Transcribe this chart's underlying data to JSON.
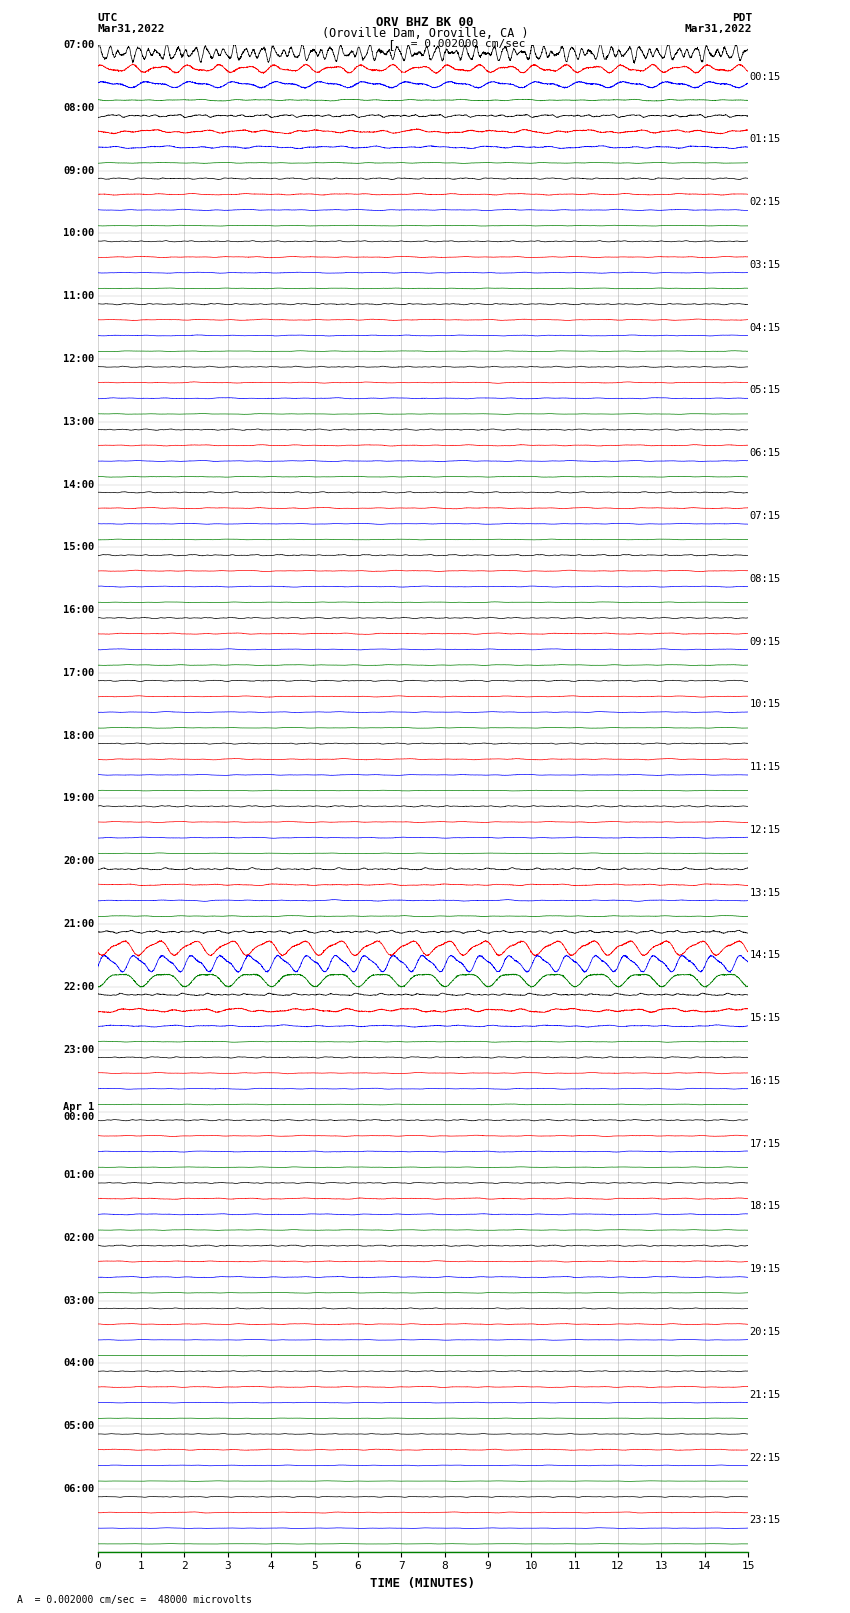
{
  "title_line1": "ORV BHZ BK 00",
  "title_line2": "(Oroville Dam, Oroville, CA )",
  "scale_label": "= 0.002000 cm/sec",
  "xlabel": "TIME (MINUTES)",
  "bottom_label": "A  = 0.002000 cm/sec =  48000 microvolts",
  "utc_label": "UTC",
  "utc_date": "Mar31,2022",
  "pdt_label": "PDT",
  "pdt_date": "Mar31,2022",
  "left_times": [
    "07:00",
    "08:00",
    "09:00",
    "10:00",
    "11:00",
    "12:00",
    "13:00",
    "14:00",
    "15:00",
    "16:00",
    "17:00",
    "18:00",
    "19:00",
    "20:00",
    "21:00",
    "22:00",
    "23:00",
    "Apr 1\n00:00",
    "01:00",
    "02:00",
    "03:00",
    "04:00",
    "05:00",
    "06:00"
  ],
  "right_times": [
    "00:15",
    "01:15",
    "02:15",
    "03:15",
    "04:15",
    "05:15",
    "06:15",
    "07:15",
    "08:15",
    "09:15",
    "10:15",
    "11:15",
    "12:15",
    "13:15",
    "14:15",
    "15:15",
    "16:15",
    "17:15",
    "18:15",
    "19:15",
    "20:15",
    "21:15",
    "22:15",
    "23:15"
  ],
  "num_rows": 24,
  "traces_per_row": 4,
  "colors": [
    "black",
    "red",
    "blue",
    "green"
  ],
  "background_color": "white",
  "xmin": 0,
  "xmax": 15,
  "xticks": [
    0,
    1,
    2,
    3,
    4,
    5,
    6,
    7,
    8,
    9,
    10,
    11,
    12,
    13,
    14,
    15
  ]
}
